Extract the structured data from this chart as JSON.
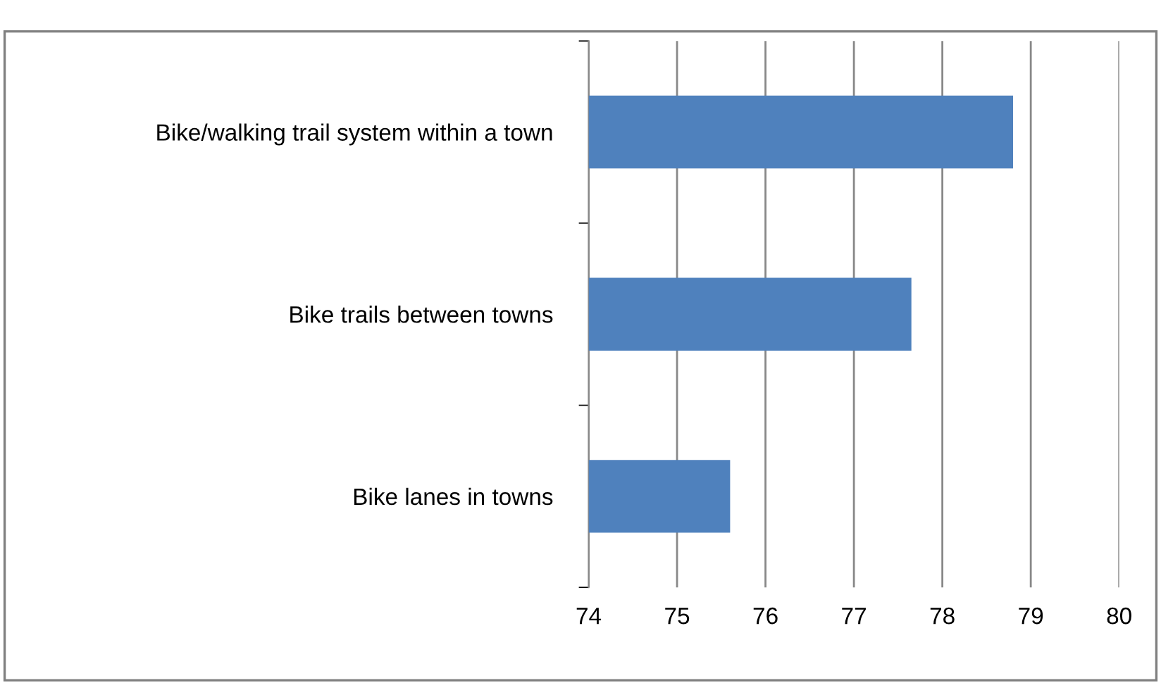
{
  "chart_data": {
    "type": "bar",
    "orientation": "horizontal",
    "categories": [
      "Bike/walking trail system within a town",
      "Bike trails between towns",
      "Bike lanes in towns"
    ],
    "values": [
      78.8,
      77.65,
      75.6
    ],
    "color": "#4f81bd",
    "xlim": [
      74,
      80
    ],
    "xticks": [
      74,
      75,
      76,
      77,
      78,
      79,
      80
    ],
    "grid": "x"
  }
}
